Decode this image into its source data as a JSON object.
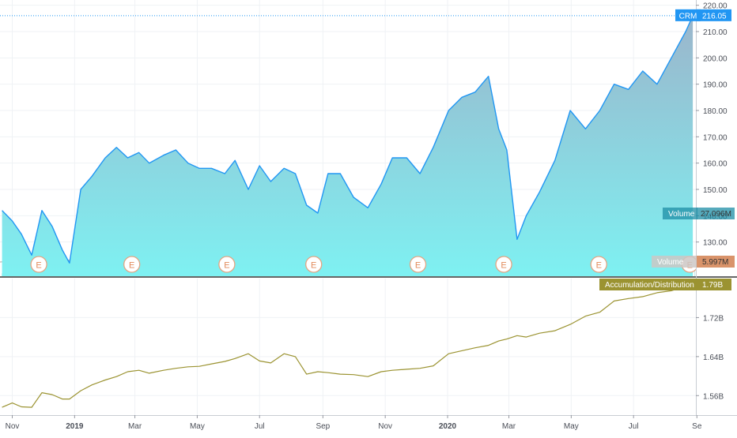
{
  "chart_data": [
    {
      "type": "area",
      "panel": "price",
      "series": [
        {
          "name": "CRM",
          "x": [
            "2018-10-22",
            "2018-11-01",
            "2018-11-10",
            "2018-11-20",
            "2018-11-30",
            "2018-12-10",
            "2018-12-20",
            "2018-12-27",
            "2019-01-07",
            "2019-01-18",
            "2019-01-31",
            "2019-02-11",
            "2019-02-22",
            "2019-03-05",
            "2019-03-15",
            "2019-03-29",
            "2019-04-10",
            "2019-04-22",
            "2019-05-03",
            "2019-05-15",
            "2019-05-28",
            "2019-06-07",
            "2019-06-20",
            "2019-07-01",
            "2019-07-12",
            "2019-07-25",
            "2019-08-05",
            "2019-08-16",
            "2019-08-27",
            "2019-09-06",
            "2019-09-18",
            "2019-10-01",
            "2019-10-15",
            "2019-10-28",
            "2019-11-08",
            "2019-11-22",
            "2019-12-05",
            "2019-12-18",
            "2020-01-02",
            "2020-01-15",
            "2020-01-28",
            "2020-02-10",
            "2020-02-20",
            "2020-02-28",
            "2020-03-09",
            "2020-03-18",
            "2020-03-31",
            "2020-04-15",
            "2020-04-30",
            "2020-05-15",
            "2020-05-29",
            "2020-06-12",
            "2020-06-26",
            "2020-07-10",
            "2020-07-24",
            "2020-08-07",
            "2020-08-21",
            "2020-08-28"
          ],
          "values": [
            142,
            138,
            133,
            125,
            142,
            136,
            127,
            122,
            150,
            155,
            162,
            166,
            162,
            164,
            160,
            163,
            165,
            160,
            158,
            158,
            156,
            161,
            150,
            159,
            153,
            158,
            156,
            144,
            141,
            156,
            156,
            147,
            143,
            152,
            162,
            162,
            156,
            166,
            180,
            185,
            187,
            193,
            173,
            165,
            131,
            140,
            149,
            161,
            180,
            173,
            180,
            190,
            188,
            195,
            190,
            200,
            210,
            216
          ]
        }
      ],
      "volume": {
        "name": "Volume",
        "label": "Volume",
        "value": "27.096M",
        "scale": "relative"
      },
      "volume_ma": {
        "name": "Volume",
        "label": "Volume",
        "value": "5.997M",
        "scale": "relative"
      },
      "earnings_markers": {
        "label": "E",
        "x": [
          "2018-11-27",
          "2019-02-26",
          "2019-05-30",
          "2019-08-23",
          "2019-12-03",
          "2020-02-25",
          "2020-05-28",
          "2020-08-25"
        ]
      },
      "last_price_label": {
        "symbol": "CRM",
        "value": "216.05",
        "price": 216.05
      },
      "y_ticks": [
        "130.00",
        "140.00",
        "150.00",
        "160.00",
        "170.00",
        "180.00",
        "190.00",
        "200.00",
        "210.00",
        "220.00"
      ],
      "ylim": [
        117,
        222
      ],
      "colors": {
        "line": "#2196F3",
        "fill_top": "#9BB5CB",
        "fill_bottom": "#7EF1F2",
        "label": "#2196F3",
        "volume": "#1D8EA5",
        "volume_ma": "#D9936A"
      }
    },
    {
      "type": "line",
      "panel": "indicator",
      "series": [
        {
          "name": "Accumulation/Distribution",
          "x": [
            "2018-10-22",
            "2018-11-01",
            "2018-11-10",
            "2018-11-20",
            "2018-11-30",
            "2018-12-10",
            "2018-12-20",
            "2018-12-27",
            "2019-01-07",
            "2019-01-18",
            "2019-01-31",
            "2019-02-11",
            "2019-02-22",
            "2019-03-05",
            "2019-03-15",
            "2019-03-29",
            "2019-04-10",
            "2019-04-22",
            "2019-05-03",
            "2019-05-15",
            "2019-05-28",
            "2019-06-07",
            "2019-06-20",
            "2019-07-01",
            "2019-07-12",
            "2019-07-25",
            "2019-08-05",
            "2019-08-16",
            "2019-08-27",
            "2019-09-06",
            "2019-09-18",
            "2019-10-01",
            "2019-10-15",
            "2019-10-28",
            "2019-11-08",
            "2019-11-22",
            "2019-12-05",
            "2019-12-18",
            "2020-01-02",
            "2020-01-15",
            "2020-01-28",
            "2020-02-10",
            "2020-02-20",
            "2020-02-28",
            "2020-03-09",
            "2020-03-18",
            "2020-03-31",
            "2020-04-15",
            "2020-04-30",
            "2020-05-15",
            "2020-05-29",
            "2020-06-12",
            "2020-06-26",
            "2020-07-10",
            "2020-07-24",
            "2020-08-07",
            "2020-08-21",
            "2020-08-28"
          ],
          "values": [
            1.536,
            1.545,
            1.537,
            1.536,
            1.566,
            1.562,
            1.553,
            1.553,
            1.57,
            1.582,
            1.592,
            1.599,
            1.609,
            1.612,
            1.606,
            1.612,
            1.616,
            1.619,
            1.62,
            1.625,
            1.63,
            1.636,
            1.646,
            1.631,
            1.627,
            1.646,
            1.64,
            1.604,
            1.609,
            1.607,
            1.604,
            1.603,
            1.599,
            1.609,
            1.612,
            1.614,
            1.616,
            1.621,
            1.646,
            1.652,
            1.658,
            1.663,
            1.672,
            1.676,
            1.683,
            1.68,
            1.688,
            1.693,
            1.706,
            1.723,
            1.731,
            1.754,
            1.759,
            1.763,
            1.771,
            1.775,
            1.785,
            1.79
          ]
        }
      ],
      "last_value_label": {
        "name": "Accumulation/Distribution",
        "value": "1.79B",
        "number": 1.79
      },
      "y_ticks": [
        {
          "label": "1.56B",
          "value": 1.56
        },
        {
          "label": "1.64B",
          "value": 1.64
        },
        {
          "label": "1.72B",
          "value": 1.72
        }
      ],
      "ylim": [
        1.52,
        1.8
      ],
      "colors": {
        "line": "#9B9331",
        "label": "#9B9331"
      }
    }
  ],
  "x_axis": {
    "range": [
      "2018-10-20",
      "2020-08-31"
    ],
    "ticks": [
      {
        "label": "Nov",
        "date": "2018-11-01",
        "bold": false
      },
      {
        "label": "2019",
        "date": "2019-01-01",
        "bold": true
      },
      {
        "label": "Mar",
        "date": "2019-03-01",
        "bold": false
      },
      {
        "label": "May",
        "date": "2019-05-01",
        "bold": false
      },
      {
        "label": "Jul",
        "date": "2019-07-01",
        "bold": false
      },
      {
        "label": "Sep",
        "date": "2019-09-01",
        "bold": false
      },
      {
        "label": "Nov",
        "date": "2019-11-01",
        "bold": false
      },
      {
        "label": "2020",
        "date": "2020-01-01",
        "bold": true
      },
      {
        "label": "Mar",
        "date": "2020-03-01",
        "bold": false
      },
      {
        "label": "May",
        "date": "2020-05-01",
        "bold": false
      },
      {
        "label": "Jul",
        "date": "2020-07-01",
        "bold": false
      },
      {
        "label": "Se",
        "date": "2020-09-01",
        "bold": false
      }
    ]
  },
  "grid": true
}
